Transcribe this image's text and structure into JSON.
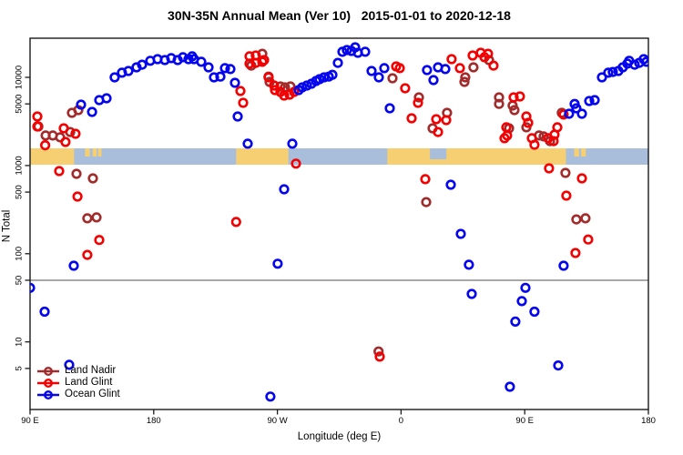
{
  "chart_data": {
    "type": "scatter",
    "title": "30N-35N Annual Mean (Ver 10)   2015-01-01 to 2020-12-18",
    "xlabel": "Longitude (deg E)",
    "ylabel": "N Total",
    "x_axis": {
      "description": "Longitude wrapping eastward from 90E through 180, 90W, 0, 90E to 180 (450 deg span)",
      "span_deg": 450,
      "ticks": [
        {
          "deg": 0,
          "label": "90 E"
        },
        {
          "deg": 90,
          "label": "180"
        },
        {
          "deg": 180,
          "label": "90 W"
        },
        {
          "deg": 270,
          "label": "0"
        },
        {
          "deg": 360,
          "label": "90 E"
        },
        {
          "deg": 450,
          "label": "180"
        }
      ]
    },
    "y_axis": {
      "scale": "log10",
      "range_approx": [
        2,
        25000
      ],
      "ticks": [
        {
          "v": 10000,
          "label": "10000"
        },
        {
          "v": 5000,
          "label": "5000"
        },
        {
          "v": 1000,
          "label": "1000"
        },
        {
          "v": 500,
          "label": "500"
        },
        {
          "v": 100,
          "label": "100"
        },
        {
          "v": 50,
          "label": "50"
        },
        {
          "v": 10,
          "label": "10"
        },
        {
          "v": 5,
          "label": "5"
        }
      ]
    },
    "reference_line": {
      "value": 50,
      "color": "#8C8C8C"
    },
    "map_strip": {
      "comment": "geographic strip of the 30N-35N latitude band drawn across N=1000-1600",
      "ocean_color": "#A9BEDB",
      "land_color": "#F5CF72",
      "land_segments_deg": [
        {
          "from": 0,
          "to": 32,
          "kind": "land"
        },
        {
          "from": 40,
          "to": 43.5,
          "kind": "island"
        },
        {
          "from": 45.5,
          "to": 48.5,
          "kind": "island"
        },
        {
          "from": 49.5,
          "to": 52,
          "kind": "island"
        },
        {
          "from": 150,
          "to": 188,
          "kind": "land"
        },
        {
          "from": 260,
          "to": 291,
          "kind": "land"
        },
        {
          "from": 291,
          "to": 303,
          "kind": "med"
        },
        {
          "from": 303,
          "to": 390,
          "kind": "land"
        },
        {
          "from": 396,
          "to": 399.5,
          "kind": "island"
        },
        {
          "from": 401,
          "to": 404.5,
          "kind": "island"
        }
      ]
    },
    "series": [
      {
        "name": "Land Nadir",
        "color": "#A22C2C",
        "points": [
          [
            6,
            2770
          ],
          [
            11.3,
            2190
          ],
          [
            16.6,
            2190
          ],
          [
            21.9,
            2090
          ],
          [
            29.2,
            2400
          ],
          [
            30.5,
            3960
          ],
          [
            35.1,
            4250
          ],
          [
            33.8,
            805
          ],
          [
            45.7,
            715
          ],
          [
            41.7,
            252
          ],
          [
            48.4,
            258
          ],
          [
            161,
            13600
          ],
          [
            169,
            18500
          ],
          [
            173.6,
            10200
          ],
          [
            174.3,
            8880
          ],
          [
            182.2,
            7890
          ],
          [
            185.5,
            7700
          ],
          [
            189.5,
            7890
          ],
          [
            253.6,
            7.8
          ],
          [
            263.8,
            9760
          ],
          [
            283,
            5930
          ],
          [
            288.3,
            385
          ],
          [
            292.9,
            2640
          ],
          [
            303.5,
            3960
          ],
          [
            316.1,
            8880
          ],
          [
            316.7,
            10000
          ],
          [
            322.7,
            13000
          ],
          [
            334,
            15700
          ],
          [
            341.3,
            5930
          ],
          [
            341.3,
            5000
          ],
          [
            348.6,
            2640
          ],
          [
            351.2,
            4790
          ],
          [
            352.5,
            4250
          ],
          [
            361.2,
            2710
          ],
          [
            370.4,
            2190
          ],
          [
            373.7,
            2140
          ],
          [
            378.4,
            1890
          ],
          [
            387,
            3960
          ],
          [
            389.6,
            825
          ],
          [
            397.6,
            245
          ],
          [
            404.2,
            252
          ]
        ]
      },
      {
        "name": "Land Glint",
        "color": "#F20202",
        "points": [
          [
            5.3,
            3600
          ],
          [
            5.3,
            2770
          ],
          [
            11,
            1700
          ],
          [
            24.5,
            2640
          ],
          [
            25.8,
            1850
          ],
          [
            33.1,
            2290
          ],
          [
            21.2,
            865
          ],
          [
            34.5,
            445
          ],
          [
            41.7,
            97
          ],
          [
            50.4,
            143
          ],
          [
            150,
            229
          ],
          [
            153.1,
            7000
          ],
          [
            155.1,
            5140
          ],
          [
            159.7,
            17300
          ],
          [
            164.3,
            17700
          ],
          [
            159.7,
            14300
          ],
          [
            164.3,
            14600
          ],
          [
            169,
            15000
          ],
          [
            170.3,
            15700
          ],
          [
            173.6,
            10000
          ],
          [
            177.6,
            8070
          ],
          [
            178.3,
            7170
          ],
          [
            182.2,
            6840
          ],
          [
            184.9,
            6220
          ],
          [
            188.9,
            6370
          ],
          [
            192.2,
            6840
          ],
          [
            193.5,
            1050
          ],
          [
            254.5,
            6.8
          ],
          [
            266.4,
            13300
          ],
          [
            269.1,
            12700
          ],
          [
            273,
            7520
          ],
          [
            277.7,
            3430
          ],
          [
            282.3,
            5140
          ],
          [
            287.6,
            700
          ],
          [
            295.6,
            3350
          ],
          [
            296.9,
            2400
          ],
          [
            302.9,
            3270
          ],
          [
            306.8,
            16100
          ],
          [
            312.8,
            12700
          ],
          [
            322.1,
            17700
          ],
          [
            328,
            19000
          ],
          [
            330.7,
            16900
          ],
          [
            333.3,
            18500
          ],
          [
            337.3,
            13600
          ],
          [
            345.3,
            2040
          ],
          [
            346.6,
            2710
          ],
          [
            347.2,
            2190
          ],
          [
            351.9,
            5930
          ],
          [
            356.5,
            6070
          ],
          [
            361.2,
            3600
          ],
          [
            362.5,
            3050
          ],
          [
            365.2,
            2040
          ],
          [
            367.1,
            1720
          ],
          [
            377.1,
            2040
          ],
          [
            377.7,
            930
          ],
          [
            381,
            1890
          ],
          [
            381.7,
            2240
          ],
          [
            383.7,
            2710
          ],
          [
            388.3,
            3780
          ],
          [
            390.3,
            455
          ],
          [
            396.9,
            102
          ],
          [
            401.6,
            715
          ],
          [
            406.2,
            145
          ]
        ]
      },
      {
        "name": "Ocean Glint",
        "color": "#0505EE",
        "points": [
          [
            0,
            41
          ],
          [
            10.6,
            22
          ],
          [
            28.5,
            5.5
          ],
          [
            31.8,
            73
          ],
          [
            37.1,
            4900
          ],
          [
            45.1,
            4050
          ],
          [
            50.4,
            5520
          ],
          [
            55.7,
            5790
          ],
          [
            61.6,
            10000
          ],
          [
            66.9,
            11300
          ],
          [
            71.6,
            11800
          ],
          [
            77.5,
            13000
          ],
          [
            81.5,
            13900
          ],
          [
            87.5,
            15400
          ],
          [
            92.8,
            16100
          ],
          [
            98.1,
            15700
          ],
          [
            102.7,
            16500
          ],
          [
            107.4,
            15700
          ],
          [
            111.3,
            16900
          ],
          [
            115.3,
            16100
          ],
          [
            118,
            17300
          ],
          [
            119.3,
            16100
          ],
          [
            124.6,
            15000
          ],
          [
            129.9,
            13000
          ],
          [
            133.9,
            10000
          ],
          [
            138.5,
            10200
          ],
          [
            141.8,
            12700
          ],
          [
            145.8,
            12400
          ],
          [
            149.1,
            8670
          ],
          [
            151.1,
            3600
          ],
          [
            158.4,
            1770
          ],
          [
            174.9,
            2.4
          ],
          [
            180.2,
            77
          ],
          [
            184.9,
            538
          ],
          [
            190.9,
            1770
          ],
          [
            195.5,
            7170
          ],
          [
            198.1,
            7700
          ],
          [
            201.5,
            8070
          ],
          [
            204.8,
            8470
          ],
          [
            208.1,
            9100
          ],
          [
            210.7,
            9530
          ],
          [
            214,
            10000
          ],
          [
            217.4,
            10200
          ],
          [
            220,
            10700
          ],
          [
            224,
            14600
          ],
          [
            227.3,
            19500
          ],
          [
            230.6,
            20400
          ],
          [
            233.9,
            19900
          ],
          [
            236.6,
            21900
          ],
          [
            238.6,
            19000
          ],
          [
            243.9,
            19500
          ],
          [
            248.5,
            11800
          ],
          [
            253.8,
            10000
          ],
          [
            257.8,
            12700
          ],
          [
            261.8,
            4460
          ],
          [
            288.9,
            12100
          ],
          [
            293.6,
            9310
          ],
          [
            296.9,
            13000
          ],
          [
            302.2,
            12400
          ],
          [
            306.2,
            605
          ],
          [
            313.5,
            168
          ],
          [
            319.4,
            75
          ],
          [
            321.4,
            35
          ],
          [
            349.2,
            3.1
          ],
          [
            353.2,
            17
          ],
          [
            357.9,
            29
          ],
          [
            360.5,
            41
          ],
          [
            367.1,
            22
          ],
          [
            384.4,
            5.4
          ],
          [
            388.3,
            73
          ],
          [
            392.3,
            3870
          ],
          [
            396.3,
            5000
          ],
          [
            397.6,
            4460
          ],
          [
            401.6,
            3870
          ],
          [
            406.9,
            5390
          ],
          [
            410.9,
            5520
          ],
          [
            416.2,
            10000
          ],
          [
            420.8,
            11300
          ],
          [
            424.1,
            11500
          ],
          [
            428.1,
            11800
          ],
          [
            431.4,
            13000
          ],
          [
            434.7,
            14300
          ],
          [
            436,
            15400
          ],
          [
            440,
            13900
          ],
          [
            443.3,
            14600
          ],
          [
            446.6,
            16100
          ],
          [
            448.6,
            15000
          ]
        ]
      }
    ],
    "legend_position": "bottom-left",
    "frame_color": "#1A1A1A"
  }
}
